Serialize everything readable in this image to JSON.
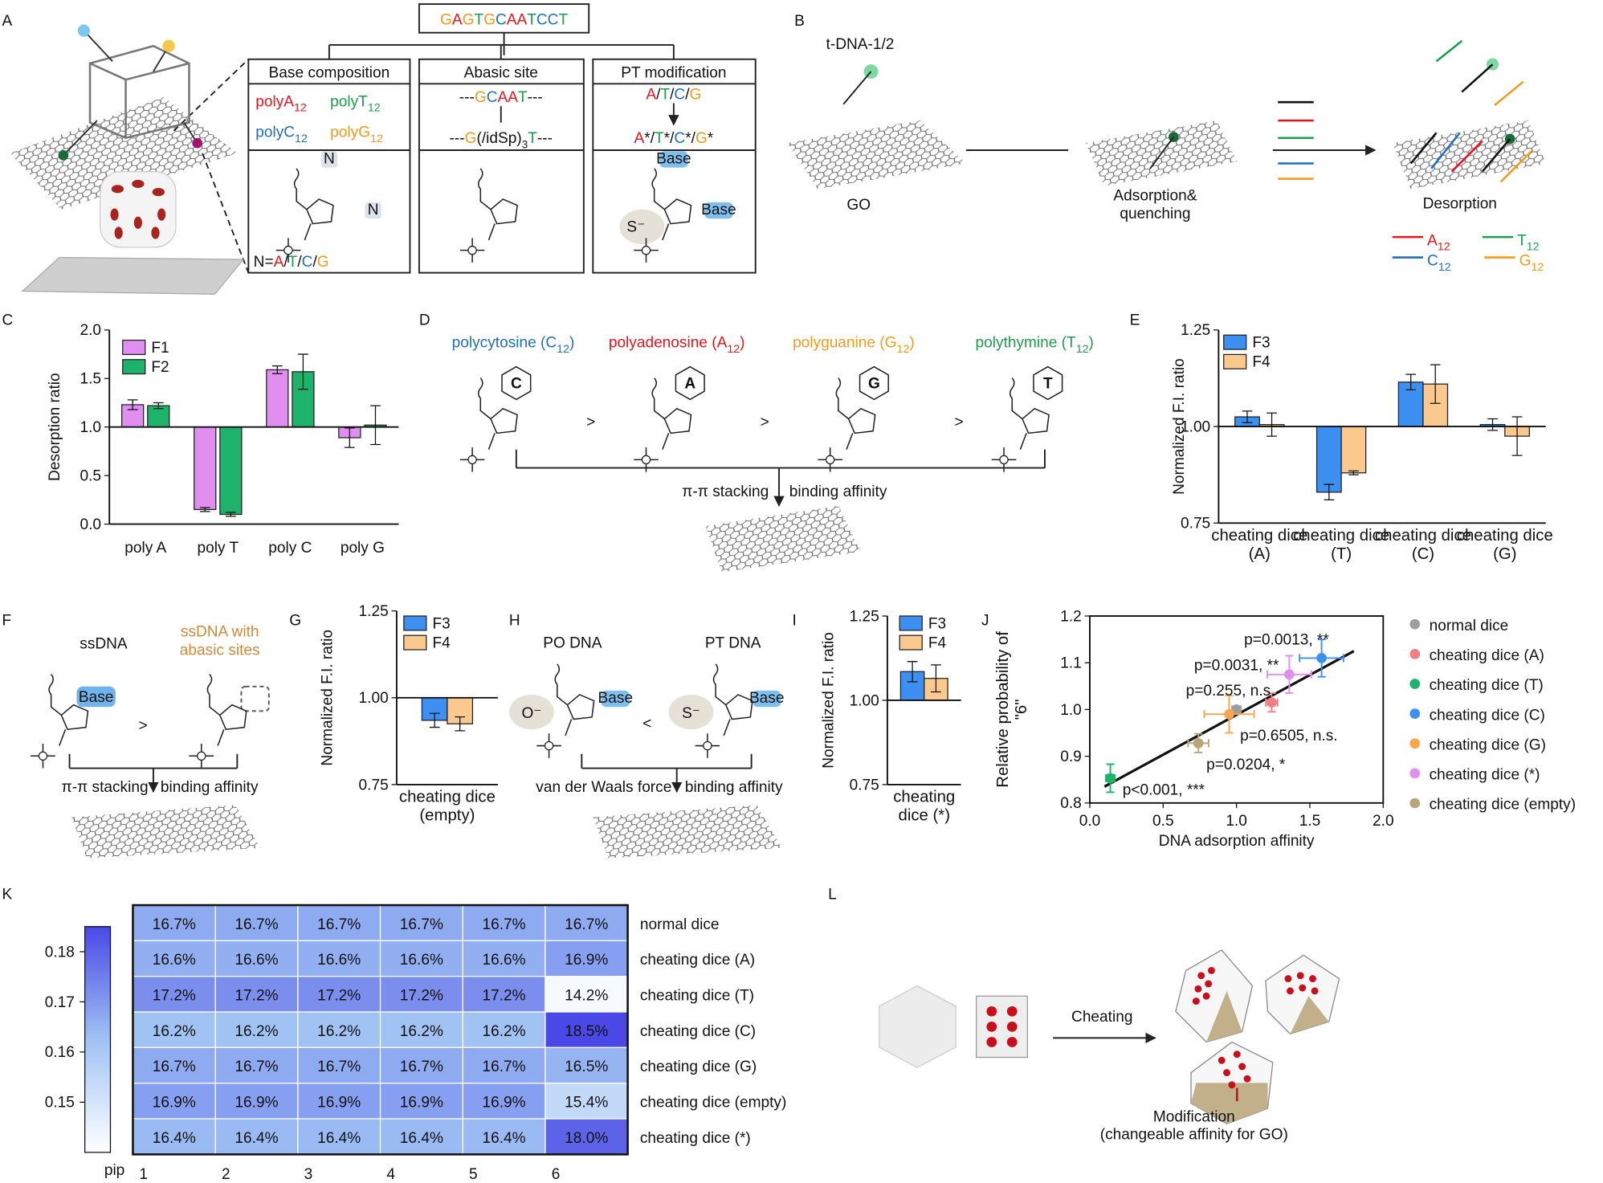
{
  "panel_labels": [
    "A",
    "B",
    "C",
    "D",
    "E",
    "F",
    "G",
    "H",
    "I",
    "J",
    "K",
    "L"
  ],
  "base_colors": {
    "A": "#e8141c",
    "T": "#1a9e4c",
    "C": "#1f6fc0",
    "G": "#f39a1e"
  },
  "panel_a": {
    "sequence": "GAGTGCAATCCT",
    "titles": [
      "Base composition",
      "Abasic site",
      "PT modification"
    ],
    "base_items": [
      {
        "text": [
          "polyA",
          "12"
        ],
        "color": "#e8141c"
      },
      {
        "text": [
          "polyT",
          "12"
        ],
        "color": "#1a9e4c"
      },
      {
        "text": [
          "polyC",
          "12"
        ],
        "color": "#1f6fc0"
      },
      {
        "text": [
          "polyG",
          "12"
        ],
        "color": "#f39a1e"
      }
    ],
    "abasic_before": "---GCAAT---",
    "abasic_after": [
      "---G(/idSp)",
      "3",
      "T---"
    ],
    "pt_before": "A/T/C/G",
    "pt_after": "A*/T*/C*/G*",
    "n_legend": "N=A/T/C/G",
    "n_marks": [
      "N",
      "N"
    ],
    "base_marks": [
      "Base",
      "Base"
    ],
    "s_mark": "S⁻"
  },
  "panel_b": {
    "probe": "t-DNA-1/2",
    "go": "GO",
    "adsorption": "Adsorption& quenching",
    "desorption": "Desorption",
    "legend": [
      {
        "text": [
          "A",
          "12"
        ],
        "color": "#e8141c"
      },
      {
        "text": [
          "T",
          "12"
        ],
        "color": "#1a9e4c"
      },
      {
        "text": [
          "C",
          "12"
        ],
        "color": "#1f6fc0"
      },
      {
        "text": [
          "G",
          "12"
        ],
        "color": "#f39a1e"
      }
    ]
  },
  "panel_d": {
    "names": [
      {
        "text": [
          "polycytosine (C",
          "12",
          ")"
        ],
        "color": "#1f6fc0"
      },
      {
        "text": [
          "polyadenosine (A",
          "12",
          ")"
        ],
        "color": "#e8141c"
      },
      {
        "text": [
          "polyguanine (G",
          "12",
          ")"
        ],
        "color": "#f39a1e"
      },
      {
        "text": [
          "polythymine (T",
          "12",
          ")"
        ],
        "color": "#1a9e4c"
      }
    ],
    "ring_letters": [
      "C",
      "A",
      "G",
      "T"
    ],
    "relations": [
      ">",
      ">",
      ">"
    ],
    "stacking": "π-π stacking",
    "affinity": "binding affinity"
  },
  "panel_f": {
    "left": "ssDNA",
    "right": "ssDNA with abasic sites",
    "base": "Base",
    "relation": ">",
    "stacking": "π-π stacking",
    "affinity": "binding affinity"
  },
  "panel_h": {
    "left": "PO DNA",
    "right": "PT DNA",
    "o": "O⁻",
    "s": "S⁻",
    "bases": [
      "Base",
      "Base"
    ],
    "relation": "<",
    "force": "van der Waals force",
    "affinity": "binding affinity"
  },
  "panel_l": {
    "action": "Cheating",
    "modification": "Modification",
    "detail": "(changeable affinity for GO)"
  },
  "chart_data": [
    {
      "type": "bar",
      "ylabel": "Desorption ratio",
      "categories": [
        "poly A",
        "poly T",
        "poly C",
        "poly G"
      ],
      "series": [
        {
          "name": "F1",
          "color": "#e08ff0",
          "values": [
            1.23,
            0.15,
            1.59,
            0.89
          ],
          "errors": [
            0.05,
            0.02,
            0.04,
            0.1
          ]
        },
        {
          "name": "F2",
          "color": "#1db36b",
          "values": [
            1.22,
            0.1,
            1.57,
            1.02
          ],
          "errors": [
            0.03,
            0.02,
            0.18,
            0.2
          ]
        }
      ],
      "ylim": [
        0,
        2
      ],
      "yticks": [
        {
          "value": 0,
          "label": "0.0"
        },
        0.5,
        {
          "value": 1,
          "label": "1.0"
        },
        1.5,
        {
          "value": 2,
          "label": "2.0"
        }
      ],
      "baseline": 1,
      "legend": "upper left"
    },
    {
      "type": "bar",
      "ylabel": "Normalized F.I. ratio",
      "categories": [
        "cheating dice (A)",
        "cheating dice (T)",
        "cheating dice (C)",
        "cheating dice (G)"
      ],
      "series": [
        {
          "name": "F3",
          "color": "#3d8ff2",
          "values": [
            1.025,
            0.83,
            1.115,
            1.005
          ],
          "errors": [
            0.015,
            0.02,
            0.02,
            0.015
          ]
        },
        {
          "name": "F4",
          "color": "#fbc98d",
          "values": [
            1.005,
            0.88,
            1.11,
            0.975
          ],
          "errors": [
            0.03,
            0.005,
            0.05,
            0.05
          ]
        }
      ],
      "ylim": [
        0.75,
        1.25
      ],
      "yticks": [
        0.75,
        {
          "value": 1,
          "label": "1.00"
        },
        1.25
      ],
      "baseline": 1,
      "legend": "upper left"
    },
    {
      "type": "bar",
      "ylabel": "Normalized F.I. ratio",
      "categories": [
        "cheating dice (empty)"
      ],
      "series": [
        {
          "name": "F3",
          "color": "#3d8ff2",
          "values": [
            0.935
          ],
          "errors": [
            0.02
          ]
        },
        {
          "name": "F4",
          "color": "#fbc98d",
          "values": [
            0.925
          ],
          "errors": [
            0.02
          ]
        }
      ],
      "ylim": [
        0.75,
        1.25
      ],
      "yticks": [
        0.75,
        {
          "value": 1,
          "label": "1.00"
        },
        1.25
      ],
      "baseline": 1,
      "legend": "upper left"
    },
    {
      "type": "bar",
      "ylabel": "Normalized F.I. ratio",
      "categories": [
        "cheating dice (*)"
      ],
      "series": [
        {
          "name": "F3",
          "color": "#3d8ff2",
          "values": [
            1.085
          ],
          "errors": [
            0.03
          ]
        },
        {
          "name": "F4",
          "color": "#fbc98d",
          "values": [
            1.065
          ],
          "errors": [
            0.04
          ]
        }
      ],
      "ylim": [
        0.75,
        1.25
      ],
      "yticks": [
        0.75,
        {
          "value": 1,
          "label": "1.00"
        },
        1.25
      ],
      "baseline": 1,
      "legend": "upper left"
    },
    {
      "type": "scatter",
      "xlabel": "DNA adsorption affinity",
      "ylabel": "Relative probability of \"6\"",
      "series": [
        {
          "name": "normal dice",
          "color": "#9e9e9e",
          "x": [
            1.0
          ],
          "values": [
            1.0
          ],
          "x_errors": [
            0.03
          ],
          "errors": [
            0.005
          ]
        },
        {
          "name": "cheating dice (A)",
          "color": "#f08080",
          "x": [
            1.24
          ],
          "values": [
            1.015
          ],
          "x_errors": [
            0.04
          ],
          "errors": [
            0.02
          ]
        },
        {
          "name": "cheating dice (T)",
          "color": "#1db36b",
          "x": [
            0.14
          ],
          "values": [
            0.853
          ],
          "x_errors": [
            0.03
          ],
          "errors": [
            0.03
          ]
        },
        {
          "name": "cheating dice (C)",
          "color": "#3d8ff2",
          "x": [
            1.58
          ],
          "values": [
            1.11
          ],
          "x_errors": [
            0.15
          ],
          "errors": [
            0.04
          ]
        },
        {
          "name": "cheating dice (G)",
          "color": "#fba64e",
          "x": [
            0.95
          ],
          "values": [
            0.99
          ],
          "x_errors": [
            0.17
          ],
          "errors": [
            0.04
          ]
        },
        {
          "name": "cheating dice (*)",
          "color": "#e08ff0",
          "x": [
            1.36
          ],
          "values": [
            1.075
          ],
          "x_errors": [
            0.15
          ],
          "errors": [
            0.04
          ]
        },
        {
          "name": "cheating dice (empty)",
          "color": "#b8a57a",
          "x": [
            0.74
          ],
          "values": [
            0.928
          ],
          "x_errors": [
            0.07
          ],
          "errors": [
            0.02
          ]
        }
      ],
      "fit": {
        "x": [
          0.1,
          1.8
        ],
        "values": [
          0.835,
          1.125
        ]
      },
      "annotations": [
        "p=0.0013, **",
        "p=0.0031, **",
        "p=0.255, n.s.",
        "p=0.6505, n.s.",
        "p=0.0204, *",
        "p<0.001, ***"
      ],
      "annotation_color": "#e8141c",
      "xlim": [
        0,
        2
      ],
      "xticks": [
        {
          "value": 0,
          "label": "0.0"
        },
        0.5,
        {
          "value": 1,
          "label": "1.0"
        },
        1.5,
        {
          "value": 2,
          "label": "2.0"
        }
      ],
      "ylim": [
        0.8,
        1.2
      ],
      "yticks": [
        0.8,
        0.9,
        {
          "value": 1,
          "label": "1.0"
        },
        1.1,
        1.2
      ],
      "legend": "right"
    },
    {
      "type": "heatmap",
      "xlabel": "pip",
      "columns": [
        1,
        2,
        3,
        4,
        5,
        6
      ],
      "rows": [
        "normal dice",
        "cheating dice (A)",
        "cheating dice (T)",
        "cheating dice (C)",
        "cheating dice (G)",
        "cheating dice (empty)",
        "cheating dice (*)"
      ],
      "values": [
        [
          0.167,
          0.167,
          0.167,
          0.167,
          0.167,
          0.167
        ],
        [
          0.166,
          0.166,
          0.166,
          0.166,
          0.166,
          0.169
        ],
        [
          0.172,
          0.172,
          0.172,
          0.172,
          0.172,
          0.142
        ],
        [
          0.162,
          0.162,
          0.162,
          0.162,
          0.162,
          0.185
        ],
        [
          0.167,
          0.167,
          0.167,
          0.167,
          0.167,
          0.165
        ],
        [
          0.169,
          0.169,
          0.169,
          0.169,
          0.169,
          0.154
        ],
        [
          0.164,
          0.164,
          0.164,
          0.164,
          0.164,
          0.18
        ]
      ],
      "value_labels": [
        [
          "16.7%",
          "16.7%",
          "16.7%",
          "16.7%",
          "16.7%",
          "16.7%"
        ],
        [
          "16.6%",
          "16.6%",
          "16.6%",
          "16.6%",
          "16.6%",
          "16.9%"
        ],
        [
          "17.2%",
          "17.2%",
          "17.2%",
          "17.2%",
          "17.2%",
          "14.2%"
        ],
        [
          "16.2%",
          "16.2%",
          "16.2%",
          "16.2%",
          "16.2%",
          "18.5%"
        ],
        [
          "16.7%",
          "16.7%",
          "16.7%",
          "16.7%",
          "16.7%",
          "16.5%"
        ],
        [
          "16.9%",
          "16.9%",
          "16.9%",
          "16.9%",
          "16.9%",
          "15.4%"
        ],
        [
          "16.4%",
          "16.4%",
          "16.4%",
          "16.4%",
          "16.4%",
          "18.0%"
        ]
      ],
      "zlim": [
        0.14,
        0.185
      ],
      "zticks": [
        0.15,
        0.16,
        0.17,
        0.18
      ],
      "colormap": [
        "#ffffff",
        "#9fc2f4",
        "#4a48e6"
      ]
    }
  ]
}
